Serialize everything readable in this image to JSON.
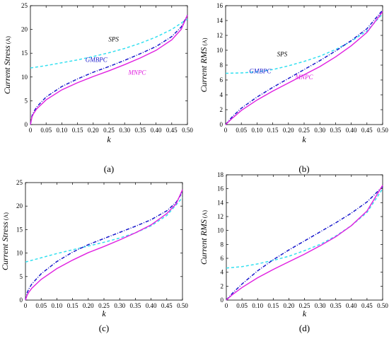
{
  "chart_data": [
    {
      "panel": "a",
      "type": "line",
      "caption": "(a)",
      "xlabel": "k",
      "ylabel": "Current Stress",
      "ylabel_unit": "(A)",
      "xlim": [
        0,
        0.5
      ],
      "ylim": [
        0,
        25
      ],
      "xticks": [
        0,
        0.05,
        0.1,
        0.15,
        0.2,
        0.25,
        0.3,
        0.35,
        0.4,
        0.45,
        0.5
      ],
      "xtick_labels": [
        "0",
        "0.05",
        "0.10",
        "0.15",
        "0.20",
        "0.25",
        "0.30",
        "0.35",
        "0.40",
        "0.45",
        "0.50"
      ],
      "yticks": [
        0,
        5,
        10,
        15,
        20,
        25
      ],
      "ytick_labels": [
        "0",
        "5",
        "10",
        "15",
        "20",
        "25"
      ],
      "grid": false,
      "series": [
        {
          "name": "SPS",
          "color": "#33e0f0",
          "style": "dashed",
          "x": [
            0,
            0.05,
            0.1,
            0.15,
            0.2,
            0.25,
            0.3,
            0.35,
            0.4,
            0.45,
            0.5
          ],
          "y": [
            11.9,
            12.4,
            13.0,
            13.6,
            14.3,
            15.1,
            16.0,
            17.1,
            18.4,
            20.0,
            22.2
          ]
        },
        {
          "name": "GMBPC",
          "color": "#1a1acc",
          "style": "dashdot",
          "x": [
            0,
            0.005,
            0.01,
            0.02,
            0.05,
            0.1,
            0.15,
            0.2,
            0.25,
            0.3,
            0.35,
            0.4,
            0.45,
            0.48,
            0.5
          ],
          "y": [
            0,
            1.8,
            2.6,
            3.7,
            5.8,
            8.0,
            9.6,
            11.0,
            12.2,
            13.5,
            14.9,
            16.4,
            18.5,
            20.5,
            23.0
          ]
        },
        {
          "name": "MNPC",
          "color": "#e020e0",
          "style": "solid",
          "x": [
            0,
            0.005,
            0.01,
            0.02,
            0.05,
            0.1,
            0.15,
            0.2,
            0.25,
            0.3,
            0.35,
            0.4,
            0.45,
            0.48,
            0.5
          ],
          "y": [
            0,
            1.6,
            2.3,
            3.3,
            5.2,
            7.3,
            8.8,
            10.1,
            11.3,
            12.6,
            14.0,
            15.6,
            17.8,
            20.0,
            23.0
          ]
        }
      ],
      "annotations": [
        {
          "text": "SPS",
          "color": "#000000",
          "x": 0.265,
          "y": 17.5
        },
        {
          "text": "GMBPC",
          "color": "#1a1acc",
          "x": 0.21,
          "y": 13.2
        },
        {
          "text": "MNPC",
          "color": "#e020e0",
          "x": 0.34,
          "y": 10.5
        }
      ]
    },
    {
      "panel": "b",
      "type": "line",
      "caption": "(b)",
      "xlabel": "k",
      "ylabel": "Current RMS",
      "ylabel_unit": "(A)",
      "xlim": [
        0,
        0.5
      ],
      "ylim": [
        0,
        16
      ],
      "xticks": [
        0,
        0.05,
        0.1,
        0.15,
        0.2,
        0.25,
        0.3,
        0.35,
        0.4,
        0.45,
        0.5
      ],
      "xtick_labels": [
        "0",
        "0.05",
        "0.10",
        "0.15",
        "0.20",
        "0.25",
        "0.30",
        "0.35",
        "0.40",
        "0.45",
        "0.50"
      ],
      "yticks": [
        0,
        2,
        4,
        6,
        8,
        10,
        12,
        14,
        16
      ],
      "ytick_labels": [
        "0",
        "2",
        "4",
        "6",
        "8",
        "10",
        "12",
        "14",
        "16"
      ],
      "grid": false,
      "series": [
        {
          "name": "SPS",
          "color": "#33e0f0",
          "style": "dashed",
          "x": [
            0,
            0.05,
            0.1,
            0.15,
            0.2,
            0.25,
            0.3,
            0.35,
            0.4,
            0.45,
            0.5
          ],
          "y": [
            6.9,
            6.95,
            7.1,
            7.4,
            7.9,
            8.5,
            9.2,
            10.1,
            11.2,
            12.6,
            14.9
          ]
        },
        {
          "name": "GMBPC",
          "color": "#1a1acc",
          "style": "dashdot",
          "x": [
            0,
            0.02,
            0.05,
            0.1,
            0.15,
            0.2,
            0.25,
            0.3,
            0.35,
            0.4,
            0.45,
            0.5
          ],
          "y": [
            0,
            1.0,
            2.2,
            3.7,
            5.0,
            6.2,
            7.4,
            8.6,
            9.9,
            11.3,
            12.9,
            15.4
          ]
        },
        {
          "name": "MNPC",
          "color": "#e020e0",
          "style": "solid",
          "x": [
            0,
            0.02,
            0.05,
            0.1,
            0.15,
            0.2,
            0.25,
            0.3,
            0.35,
            0.4,
            0.45,
            0.5
          ],
          "y": [
            0,
            0.8,
            1.9,
            3.3,
            4.5,
            5.6,
            6.7,
            7.8,
            9.1,
            10.6,
            12.4,
            15.2
          ]
        }
      ],
      "annotations": [
        {
          "text": "SPS",
          "color": "#000000",
          "x": 0.18,
          "y": 9.2
        },
        {
          "text": "GMBPC",
          "color": "#1a1acc",
          "x": 0.11,
          "y": 6.9
        },
        {
          "text": "MNPC",
          "color": "#e020e0",
          "x": 0.25,
          "y": 6.1
        }
      ]
    },
    {
      "panel": "c",
      "type": "line",
      "caption": "(c)",
      "xlabel": "k",
      "ylabel": "Current Stress",
      "ylabel_unit": "(A)",
      "xlim": [
        0,
        0.5
      ],
      "ylim": [
        0,
        25
      ],
      "xticks": [
        0,
        0.05,
        0.1,
        0.15,
        0.2,
        0.25,
        0.3,
        0.35,
        0.4,
        0.45,
        0.5
      ],
      "xtick_labels": [
        "0",
        "0.05",
        "0.10",
        "0.15",
        "0.20",
        "0.25",
        "0.30",
        "0.35",
        "0.40",
        "0.45",
        "0.50"
      ],
      "yticks": [
        0,
        5,
        10,
        15,
        20,
        25
      ],
      "ytick_labels": [
        "0",
        "5",
        "10",
        "15",
        "20",
        "25"
      ],
      "grid": false,
      "series": [
        {
          "name": "SPS",
          "color": "#33e0f0",
          "style": "dashed",
          "x": [
            0,
            0.05,
            0.1,
            0.15,
            0.2,
            0.25,
            0.3,
            0.35,
            0.4,
            0.45,
            0.5
          ],
          "y": [
            8.1,
            9.0,
            9.9,
            10.7,
            11.5,
            12.3,
            13.2,
            14.3,
            15.8,
            18.0,
            21.8
          ]
        },
        {
          "name": "GMBPC",
          "color": "#1a1acc",
          "style": "dashdot",
          "x": [
            0,
            0.005,
            0.01,
            0.02,
            0.05,
            0.1,
            0.15,
            0.2,
            0.25,
            0.3,
            0.35,
            0.4,
            0.45,
            0.48,
            0.5
          ],
          "y": [
            0,
            1.5,
            2.3,
            3.4,
            5.6,
            8.2,
            10.2,
            11.8,
            13.1,
            14.4,
            15.7,
            17.1,
            19.0,
            20.8,
            23.0
          ]
        },
        {
          "name": "MNPC",
          "color": "#e020e0",
          "style": "solid",
          "x": [
            0,
            0.005,
            0.01,
            0.02,
            0.05,
            0.1,
            0.15,
            0.2,
            0.25,
            0.3,
            0.35,
            0.4,
            0.45,
            0.48,
            0.5
          ],
          "y": [
            0,
            1.0,
            1.6,
            2.5,
            4.4,
            6.7,
            8.5,
            10.1,
            11.4,
            12.8,
            14.3,
            16.0,
            18.4,
            20.5,
            23.5
          ]
        }
      ],
      "annotations": []
    },
    {
      "panel": "d",
      "type": "line",
      "caption": "(d)",
      "xlabel": "k",
      "ylabel": "Current RMS",
      "ylabel_unit": "(A)",
      "xlim": [
        0,
        0.5
      ],
      "ylim": [
        0,
        18
      ],
      "xticks": [
        0,
        0.05,
        0.1,
        0.15,
        0.2,
        0.25,
        0.3,
        0.35,
        0.4,
        0.45,
        0.5
      ],
      "xtick_labels": [
        "0",
        "0.05",
        "0.10",
        "0.15",
        "0.20",
        "0.25",
        "0.30",
        "0.35",
        "0.40",
        "0.45",
        "0.50"
      ],
      "yticks": [
        0,
        2,
        4,
        6,
        8,
        10,
        12,
        14,
        16,
        18
      ],
      "ytick_labels": [
        "0",
        "2",
        "4",
        "6",
        "8",
        "10",
        "12",
        "14",
        "16",
        "18"
      ],
      "grid": false,
      "series": [
        {
          "name": "SPS",
          "color": "#33e0f0",
          "style": "dashed",
          "x": [
            0,
            0.05,
            0.1,
            0.15,
            0.2,
            0.25,
            0.3,
            0.35,
            0.4,
            0.45,
            0.5
          ],
          "y": [
            4.6,
            4.8,
            5.2,
            5.7,
            6.3,
            7.1,
            8.0,
            9.2,
            10.7,
            12.6,
            16.0
          ]
        },
        {
          "name": "GMBPC",
          "color": "#1a1acc",
          "style": "dashdot",
          "x": [
            0,
            0.02,
            0.05,
            0.1,
            0.15,
            0.2,
            0.25,
            0.3,
            0.35,
            0.4,
            0.45,
            0.5
          ],
          "y": [
            0,
            1.0,
            2.3,
            4.2,
            5.8,
            7.2,
            8.5,
            9.8,
            11.1,
            12.5,
            14.1,
            16.3
          ]
        },
        {
          "name": "MNPC",
          "color": "#e020e0",
          "style": "solid",
          "x": [
            0,
            0.02,
            0.05,
            0.1,
            0.15,
            0.2,
            0.25,
            0.3,
            0.35,
            0.4,
            0.45,
            0.5
          ],
          "y": [
            0,
            0.8,
            1.8,
            3.2,
            4.4,
            5.5,
            6.6,
            7.8,
            9.1,
            10.7,
            12.8,
            16.5
          ]
        }
      ],
      "annotations": []
    }
  ]
}
